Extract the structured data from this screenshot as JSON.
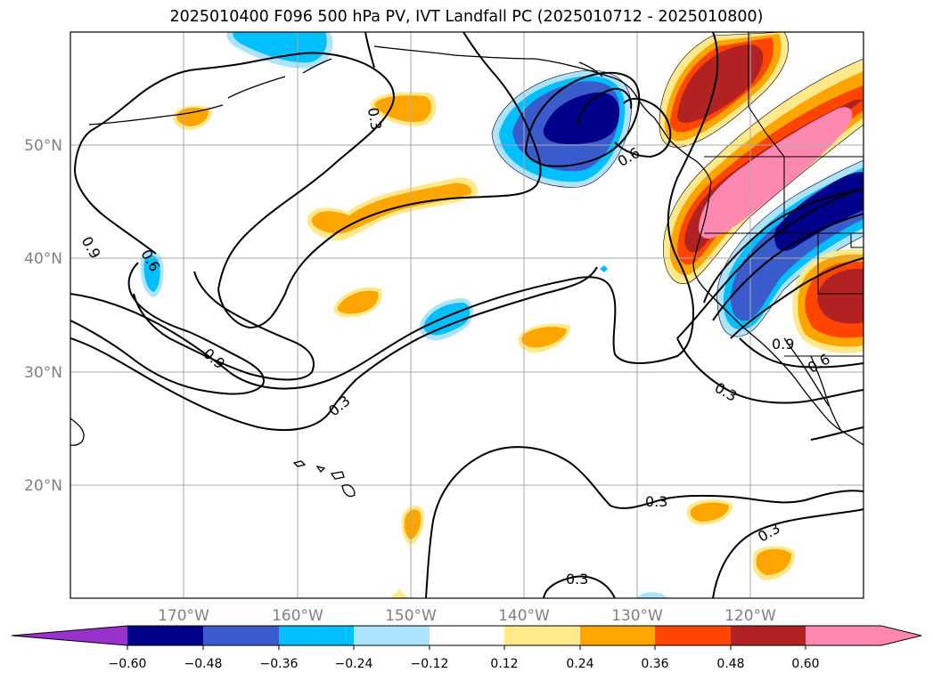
{
  "title": "2025010400 F096 500 hPa PV, IVT Landfall PC (2025010712 - 2025010800)",
  "lat_labels": [
    "50°N",
    "40°N",
    "30°N",
    "20°N"
  ],
  "lon_labels": [
    "170°W",
    "160°W",
    "150°W",
    "140°W",
    "130°W",
    "120°W"
  ],
  "colorbar": {
    "ticks": [
      "−0.60",
      "−0.48",
      "−0.36",
      "−0.24",
      "−0.12",
      "0.12",
      "0.24",
      "0.36",
      "0.48",
      "0.60"
    ],
    "colors": {
      "under": "#9932cc",
      "n060": "#00008b",
      "n048": "#3a5bcc",
      "n036": "#00bfff",
      "n024": "#aee3ff",
      "zero": "#ffffff",
      "p012": "#ffe98a",
      "p024": "#ffa500",
      "p036": "#ff4500",
      "p048": "#b22222",
      "over": "#ff88b0"
    }
  },
  "contour_labels": [
    "0.3",
    "0.6",
    "0.9",
    "0.9",
    "0.6",
    "0.9",
    "0.3",
    "0.3",
    "0.3",
    "0.3",
    "0.6",
    "0.9",
    "0.6",
    "0.3"
  ]
}
